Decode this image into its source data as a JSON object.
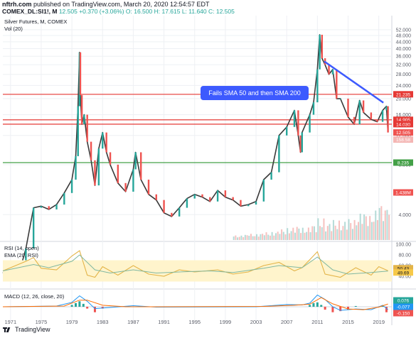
{
  "header": {
    "publisher": "nftrh.com",
    "published_on": "published on TradingView.com, March 20, 2020 12:54:57 EDT",
    "symbol": "COMEX_DL:SI1!, M",
    "price": "12.505",
    "change": "+0.370 (+3.06%)",
    "ohlc": "O: 16.500  H: 17.615  L: 11.640  C: 12.505"
  },
  "colors": {
    "up": "#26a69a",
    "down": "#ef5350",
    "hline_red": "#e53935",
    "hline_green": "#43a047",
    "trend": "#3d5afe",
    "rsi": "#e3b448",
    "rsi_band": "#fff4cc",
    "macd": "#2196f3",
    "signal": "#ff6d00",
    "grid": "#eef0f4",
    "axis_text": "#5d606b"
  },
  "chart_data": [
    {
      "type": "line",
      "title": "Silver Futures, M, COMEX",
      "subtitle": "Vol (20)",
      "log_scale": true,
      "ylim": [
        2.5,
        62
      ],
      "y_ticks": [
        4.0,
        8.0,
        12.0,
        16.0,
        20.0,
        24.0,
        28.0,
        32.0,
        36.0,
        40.0,
        44.0,
        48.0,
        52.0
      ],
      "x_ticks": [
        "1971",
        "1975",
        "1979",
        "1983",
        "1987",
        "1991",
        "1995",
        "1999",
        "2003",
        "2007",
        "2011",
        "2015",
        "2019"
      ],
      "series": [
        {
          "x": [
            1970.0,
            1971.0,
            1972.0,
            1973.0,
            1974.0,
            1975.0,
            1976.0,
            1977.0,
            1978.0,
            1979.0,
            1979.5,
            1979.8,
            1980.0,
            1980.1,
            1980.3,
            1980.6,
            1981.0,
            1981.5,
            1982.0,
            1982.5,
            1983.0,
            1983.5,
            1984.0,
            1985.0,
            1986.0,
            1987.0,
            1987.3,
            1988.0,
            1989.0,
            1990.0,
            1991.0,
            1992.0,
            1993.0,
            1994.0,
            1995.0,
            1996.0,
            1997.0,
            1998.0,
            1999.0,
            2000.0,
            2001.0,
            2002.0,
            2003.0,
            2004.0,
            2005.0,
            2006.0,
            2007.0,
            2008.0,
            2008.5,
            2008.8,
            2009.0,
            2010.0,
            2010.5,
            2011.0,
            2011.3,
            2011.6,
            2012.0,
            2012.5,
            2013.0,
            2013.5,
            2014.0,
            2015.0,
            2015.8,
            2016.5,
            2017.0,
            2018.0,
            2018.8,
            2019.5,
            2020.0,
            2020.2
          ],
          "values": [
            1.8,
            1.6,
            1.7,
            2.5,
            4.4,
            4.5,
            4.3,
            4.6,
            5.4,
            6.5,
            9.0,
            18.0,
            38.0,
            21.0,
            14.0,
            16.0,
            11.0,
            8.5,
            6.0,
            10.0,
            12.5,
            9.5,
            8.0,
            6.2,
            5.5,
            7.5,
            9.5,
            6.5,
            5.3,
            4.9,
            4.1,
            3.9,
            4.4,
            5.0,
            5.3,
            5.1,
            4.8,
            5.6,
            5.1,
            4.9,
            4.5,
            4.6,
            4.8,
            6.5,
            7.2,
            12.0,
            13.5,
            17.0,
            12.0,
            9.5,
            12.5,
            16.0,
            19.0,
            30.0,
            48.5,
            35.0,
            32.0,
            28.0,
            30.0,
            20.0,
            20.0,
            15.5,
            14.0,
            19.5,
            16.5,
            15.0,
            14.5,
            17.0,
            18.0,
            12.505
          ]
        }
      ],
      "horizontal_lines": [
        {
          "value": 21.235,
          "label": "21.235",
          "color": "#e53935"
        },
        {
          "value": 14.905,
          "label": "14.905",
          "color": "#e53935"
        },
        {
          "value": 14.03,
          "label": "14.030",
          "color": "#e53935"
        },
        {
          "value": 8.235,
          "label": "8.235",
          "color": "#43a047"
        }
      ],
      "price_labels": [
        "12.505",
        "158.58",
        "1.438M"
      ],
      "annotation": {
        "text": "Fails SMA 50 and then SMA 200",
        "from": [
          2011.9,
          33.5
        ],
        "to": [
          2019.6,
          18.9
        ]
      },
      "volume": {
        "x": [
          2000.0,
          2001.0,
          2002.0,
          2003.0,
          2004.0,
          2005.0,
          2006.0,
          2007.0,
          2008.0,
          2009.0,
          2010.0,
          2011.0,
          2012.0,
          2013.0,
          2014.0,
          2015.0,
          2016.0,
          2017.0,
          2018.0,
          2019.0,
          2020.0
        ],
        "values": [
          0.15,
          0.18,
          0.2,
          0.22,
          0.25,
          0.28,
          0.35,
          0.4,
          0.45,
          0.4,
          0.5,
          0.7,
          0.55,
          0.65,
          0.6,
          0.7,
          0.85,
          0.9,
          0.95,
          1.2,
          1.438
        ]
      }
    },
    {
      "type": "line",
      "title": "RSI (14, open)",
      "subtitle": "EMA (20, RSI)",
      "ylim": [
        20,
        100
      ],
      "y_ticks": [
        40.0,
        60.0,
        80.0,
        100.0
      ],
      "band": [
        30,
        70
      ],
      "value_labels": [
        "50.43",
        "49.69"
      ],
      "series": [
        {
          "name": "RSI",
          "x": [
            1970,
            1973,
            1974,
            1975,
            1977,
            1979,
            1980,
            1981,
            1982,
            1983,
            1985,
            1987,
            1989,
            1991,
            1993,
            1995,
            1998,
            2000,
            2002,
            2004,
            2006,
            2008,
            2009,
            2011,
            2012,
            2014,
            2016,
            2018,
            2019,
            2020.2
          ],
          "values": [
            50,
            68,
            75,
            55,
            52,
            78,
            88,
            42,
            38,
            58,
            42,
            60,
            44,
            40,
            52,
            48,
            52,
            44,
            48,
            60,
            66,
            50,
            56,
            86,
            44,
            38,
            56,
            42,
            58,
            50.43
          ]
        },
        {
          "name": "EMA",
          "x": [
            1970,
            1974,
            1976,
            1979,
            1980,
            1982,
            1984,
            1987,
            1990,
            1993,
            1997,
            2000,
            2004,
            2006,
            2009,
            2011,
            2013,
            2015,
            2018,
            2020.2
          ],
          "values": [
            50,
            62,
            56,
            68,
            80,
            52,
            46,
            52,
            46,
            48,
            50,
            47,
            55,
            60,
            56,
            76,
            52,
            44,
            47,
            49.69
          ]
        }
      ]
    },
    {
      "type": "line",
      "title": "MACD (12, 26, close, 20)",
      "ylim": [
        -0.3,
        0.3
      ],
      "y_ticks": [
        0.0
      ],
      "value_labels": [
        "0.076",
        "-0.077",
        "-0.150"
      ],
      "series": [
        {
          "name": "MACD",
          "x": [
            1970,
            1977,
            1979,
            1980,
            1981,
            1982,
            1984,
            1987,
            1990,
            2003,
            2007,
            2009,
            2010,
            2011,
            2012,
            2013,
            2014,
            2016,
            2018,
            2019.5,
            2020.2
          ],
          "values": [
            0.0,
            0.02,
            0.12,
            0.3,
            0.15,
            -0.05,
            -0.02,
            0.03,
            -0.01,
            0.0,
            0.06,
            0.05,
            0.1,
            0.32,
            0.2,
            0.0,
            -0.1,
            -0.06,
            -0.08,
            0.04,
            -0.077
          ]
        },
        {
          "name": "Signal",
          "x": [
            1970,
            1978,
            1980,
            1981,
            1983,
            1986,
            1990,
            2004,
            2008,
            2010,
            2011.5,
            2013,
            2015,
            2017,
            2019,
            2020.2
          ],
          "values": [
            0.0,
            0.02,
            0.18,
            0.18,
            0.04,
            0.0,
            0.0,
            0.01,
            0.04,
            0.07,
            0.25,
            0.08,
            -0.06,
            -0.08,
            -0.01,
            0.076
          ]
        },
        {
          "name": "Histogram",
          "x": [
            1979,
            1979.5,
            1980,
            1980.5,
            1981,
            1982,
            1983,
            2010,
            2010.5,
            2011,
            2011.5,
            2012,
            2013,
            2014,
            2015,
            2016,
            2019.5,
            2020
          ],
          "values": [
            0.05,
            0.1,
            0.15,
            0.08,
            -0.05,
            -0.15,
            -0.05,
            0.05,
            0.1,
            0.12,
            0.05,
            -0.08,
            -0.15,
            -0.12,
            -0.08,
            0.02,
            0.03,
            -0.15
          ]
        }
      ]
    }
  ],
  "footer": {
    "brand": "TradingView"
  }
}
